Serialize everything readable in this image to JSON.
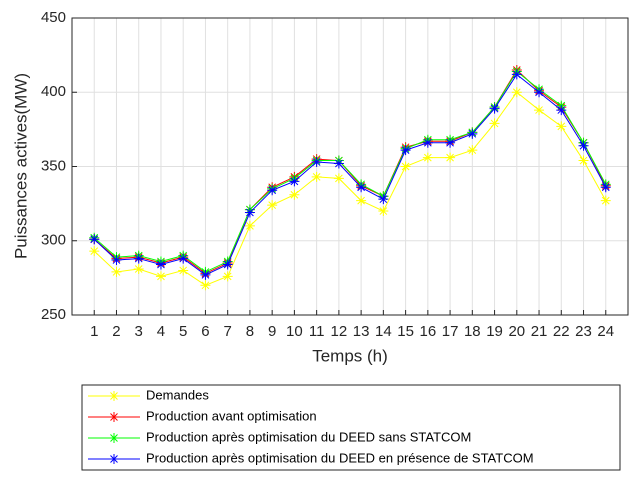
{
  "chart_data": {
    "type": "line",
    "x_label": "Temps (h)",
    "y_label": "Puissances actives(MW)",
    "x": [
      1,
      2,
      3,
      4,
      5,
      6,
      7,
      8,
      9,
      10,
      11,
      12,
      13,
      14,
      15,
      16,
      17,
      18,
      19,
      20,
      21,
      22,
      23,
      24
    ],
    "xlim": [
      0,
      25
    ],
    "xticks": [
      1,
      2,
      3,
      4,
      5,
      6,
      7,
      8,
      9,
      10,
      11,
      12,
      13,
      14,
      15,
      16,
      17,
      18,
      19,
      20,
      21,
      22,
      23,
      24
    ],
    "ylim": [
      250,
      450
    ],
    "yticks": [
      250,
      300,
      350,
      400,
      450
    ],
    "grid": true,
    "series": [
      {
        "name": "Demandes",
        "color": "#ffff00",
        "values": [
          293,
          279,
          281,
          276,
          280,
          270,
          276,
          310,
          324,
          331,
          343,
          342,
          327,
          320,
          350,
          356,
          356,
          361,
          379,
          400,
          388,
          377,
          354,
          327
        ]
      },
      {
        "name": "Production avant optimisation",
        "color": "#ff0000",
        "values": [
          301,
          288,
          289,
          285,
          289,
          278,
          285,
          321,
          336,
          343,
          355,
          354,
          337,
          330,
          363,
          367,
          367,
          373,
          390,
          415,
          401,
          390,
          366,
          337
        ]
      },
      {
        "name": "Production après optimisation du DEED sans STATCOM",
        "color": "#00ff00",
        "values": [
          302,
          289,
          290,
          286,
          290,
          279,
          286,
          321,
          335,
          342,
          354,
          354,
          338,
          330,
          362,
          368,
          368,
          373,
          390,
          414,
          402,
          391,
          366,
          338
        ]
      },
      {
        "name": "Production après optimisation du DEED en présence de STATCOM",
        "color": "#0000ff",
        "values": [
          301,
          287,
          288,
          284,
          288,
          277,
          284,
          319,
          334,
          340,
          353,
          352,
          336,
          328,
          361,
          366,
          366,
          372,
          389,
          412,
          400,
          388,
          364,
          336
        ]
      }
    ]
  }
}
